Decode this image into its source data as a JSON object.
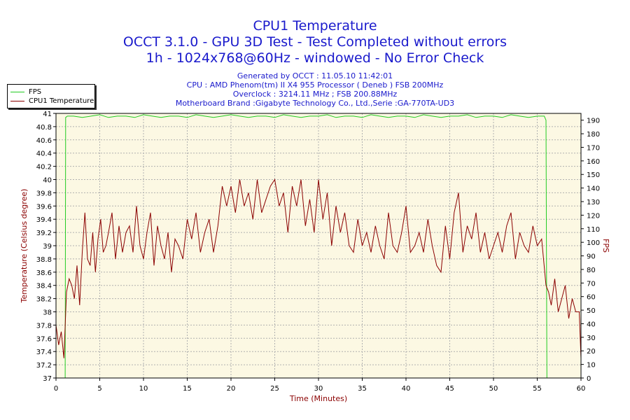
{
  "header": {
    "title_lines": [
      "CPU1 Temperature",
      "OCCT 3.1.0 - GPU 3D Test - Test Completed without errors",
      "1h - 1024x768@60Hz - windowed - No Error Check"
    ],
    "meta_lines": [
      "Generated by OCCT : 11.05.10 11:42:01",
      "CPU : AMD Phenom(tm) II X4 955 Processor ( Deneb ) FSB 200MHz",
      "Overclock : 3214.11 MHz ; FSB 200.88MHz",
      "Motherboard Brand :Gigabyte Technology Co., Ltd.,Serie :GA-770TA-UD3"
    ]
  },
  "colors": {
    "title": "#1a1acc",
    "plot_bg": "#fcf8e3",
    "grid": "#b0b0b0",
    "temperature": "#8b0000",
    "fps": "#22cc22"
  },
  "chart_data": {
    "type": "line",
    "title": "CPU1 Temperature",
    "xlabel": "Time (Minutes)",
    "ylabel": "Temperature (Celsius degree)",
    "y2label": "FPS",
    "xlim": [
      0,
      60
    ],
    "ylim": [
      37,
      41
    ],
    "y2lim": [
      0,
      195
    ],
    "x_ticks": [
      0,
      5,
      10,
      15,
      20,
      25,
      30,
      35,
      40,
      45,
      50,
      55,
      60
    ],
    "y_ticks": [
      "37",
      "37.2",
      "37.4",
      "37.6",
      "37.8",
      "38",
      "38.2",
      "38.4",
      "38.6",
      "38.8",
      "39",
      "39.2",
      "39.4",
      "39.6",
      "39.8",
      "40",
      "40.2",
      "40.4",
      "40.6",
      "40.8",
      "41"
    ],
    "y2_ticks": [
      0,
      10,
      20,
      30,
      40,
      50,
      60,
      70,
      80,
      90,
      100,
      110,
      120,
      130,
      140,
      150,
      160,
      170,
      180,
      190
    ],
    "grid": "dashed",
    "legend_position": "top-left, outside plot",
    "series": [
      {
        "name": "FPS",
        "axis": "right",
        "x": [
          0,
          1.05,
          1.1,
          1.3,
          2,
          3,
          4,
          5,
          6,
          7,
          8,
          9,
          10,
          11,
          12,
          13,
          14,
          15,
          16,
          17,
          18,
          19,
          20,
          21,
          22,
          23,
          24,
          25,
          26,
          27,
          28,
          29,
          30,
          31,
          32,
          33,
          34,
          35,
          36,
          37,
          38,
          39,
          40,
          41,
          42,
          43,
          44,
          45,
          46,
          47,
          48,
          49,
          50,
          51,
          52,
          53,
          54,
          55,
          55.8,
          56.0,
          56.1,
          60
        ],
        "y": [
          0,
          0,
          192,
          193,
          193,
          192,
          193,
          194,
          192,
          193,
          193,
          192,
          194,
          193,
          192,
          193,
          193,
          192,
          194,
          193,
          192,
          193,
          194,
          193,
          192,
          193,
          193,
          192,
          194,
          193,
          192,
          193,
          193,
          194,
          192,
          193,
          193,
          192,
          194,
          193,
          192,
          193,
          193,
          192,
          194,
          193,
          192,
          193,
          193,
          194,
          192,
          193,
          193,
          192,
          194,
          193,
          192,
          193,
          193,
          190,
          0,
          0
        ]
      },
      {
        "name": "CPU1 Temperature",
        "axis": "left",
        "x": [
          0,
          0.3,
          0.6,
          0.9,
          1.2,
          1.5,
          1.8,
          2.1,
          2.4,
          2.7,
          3.0,
          3.3,
          3.6,
          3.9,
          4.2,
          4.5,
          4.8,
          5.1,
          5.4,
          5.7,
          6.0,
          6.4,
          6.8,
          7.2,
          7.6,
          8.0,
          8.4,
          8.8,
          9.2,
          9.6,
          10.0,
          10.4,
          10.8,
          11.2,
          11.6,
          12.0,
          12.4,
          12.8,
          13.2,
          13.6,
          14.0,
          14.5,
          15.0,
          15.5,
          16.0,
          16.5,
          17.0,
          17.5,
          18.0,
          18.5,
          19.0,
          19.5,
          20.0,
          20.5,
          21.0,
          21.5,
          22.0,
          22.5,
          23.0,
          23.5,
          24.0,
          24.5,
          25.0,
          25.5,
          26.0,
          26.5,
          27.0,
          27.5,
          28.0,
          28.5,
          29.0,
          29.5,
          30.0,
          30.5,
          31.0,
          31.5,
          32.0,
          32.5,
          33.0,
          33.5,
          34.0,
          34.5,
          35.0,
          35.5,
          36.0,
          36.5,
          37.0,
          37.5,
          38.0,
          38.5,
          39.0,
          39.5,
          40.0,
          40.5,
          41.0,
          41.5,
          42.0,
          42.5,
          43.0,
          43.5,
          44.0,
          44.5,
          45.0,
          45.5,
          46.0,
          46.5,
          47.0,
          47.5,
          48.0,
          48.5,
          49.0,
          49.5,
          50.0,
          50.5,
          51.0,
          51.5,
          52.0,
          52.5,
          53.0,
          53.5,
          54.0,
          54.5,
          55.0,
          55.5,
          56.0,
          56.3,
          56.6,
          57.0,
          57.4,
          57.8,
          58.2,
          58.6,
          59.0,
          59.4,
          59.8,
          60.0
        ],
        "y": [
          37.8,
          37.5,
          37.7,
          37.3,
          38.3,
          38.5,
          38.4,
          38.2,
          38.7,
          38.1,
          38.9,
          39.5,
          38.8,
          38.7,
          39.2,
          38.6,
          39.1,
          39.4,
          38.9,
          39.0,
          39.2,
          39.5,
          38.8,
          39.3,
          38.9,
          39.2,
          39.3,
          38.9,
          39.6,
          39.0,
          38.8,
          39.2,
          39.5,
          38.7,
          39.3,
          39.0,
          38.8,
          39.2,
          38.6,
          39.1,
          39.0,
          38.8,
          39.4,
          39.1,
          39.5,
          38.9,
          39.2,
          39.4,
          38.9,
          39.3,
          39.9,
          39.6,
          39.9,
          39.5,
          40.0,
          39.6,
          39.8,
          39.4,
          40.0,
          39.5,
          39.7,
          39.9,
          40.0,
          39.6,
          39.8,
          39.2,
          39.9,
          39.6,
          40.0,
          39.3,
          39.7,
          39.2,
          40.0,
          39.4,
          39.8,
          39.0,
          39.6,
          39.2,
          39.5,
          39.0,
          38.9,
          39.4,
          39.0,
          39.2,
          38.9,
          39.3,
          39.0,
          38.8,
          39.5,
          39.0,
          38.9,
          39.2,
          39.6,
          38.9,
          39.0,
          39.2,
          38.9,
          39.4,
          39.0,
          38.7,
          38.6,
          39.3,
          38.8,
          39.5,
          39.8,
          38.9,
          39.3,
          39.1,
          39.5,
          38.9,
          39.2,
          38.8,
          39.0,
          39.2,
          38.9,
          39.3,
          39.5,
          38.8,
          39.2,
          39.0,
          38.9,
          39.3,
          39.0,
          39.1,
          38.4,
          38.3,
          38.1,
          38.5,
          38.0,
          38.2,
          38.4,
          37.9,
          38.2,
          38.0,
          38.0,
          37.3
        ]
      }
    ]
  }
}
